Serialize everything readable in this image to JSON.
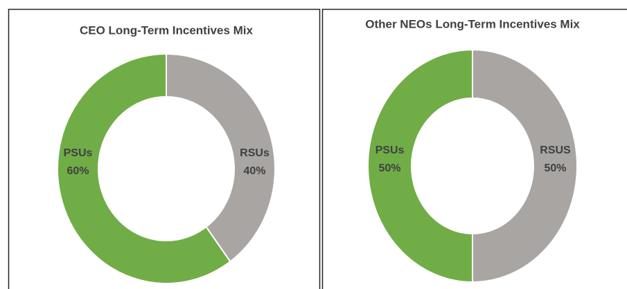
{
  "chart_data": [
    {
      "type": "pie",
      "title": "CEO Long-Term Incentives Mix",
      "categories": [
        "RSUs",
        "PSUs"
      ],
      "values": [
        40,
        60
      ],
      "value_labels": [
        "40%",
        "60%"
      ],
      "colors": [
        "#a8a5a3",
        "#70ad47"
      ],
      "donut": true
    },
    {
      "type": "pie",
      "title": "Other NEOs Long-Term Incentives Mix",
      "categories": [
        "RSUS",
        "PSUs"
      ],
      "values": [
        50,
        50
      ],
      "value_labels": [
        "50%",
        "50%"
      ],
      "colors": [
        "#a8a5a3",
        "#70ad47"
      ],
      "donut": true
    }
  ]
}
